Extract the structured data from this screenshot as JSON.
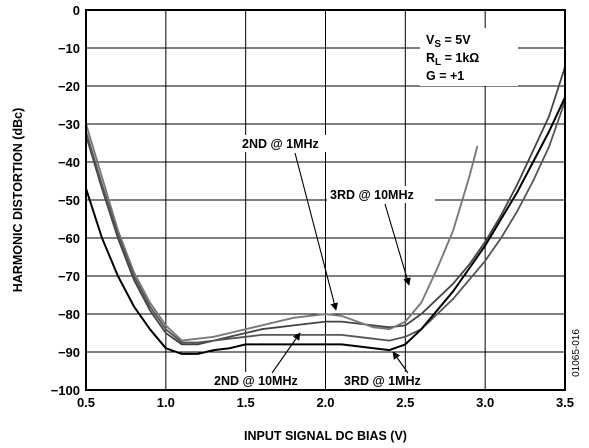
{
  "chart_data": {
    "type": "line",
    "title": "",
    "xlabel": "INPUT SIGNAL DC BIAS (V)",
    "ylabel": "HARMONIC DISTORTION (dBc)",
    "xlim": [
      0.5,
      3.5
    ],
    "ylim": [
      -100,
      0
    ],
    "x_ticks": [
      "0.5",
      "1.0",
      "1.5",
      "2.0",
      "2.5",
      "3.0",
      "3.5"
    ],
    "y_ticks": [
      "0",
      "−10",
      "−20",
      "−30",
      "−40",
      "−50",
      "−60",
      "−70",
      "−80",
      "−90",
      "−100"
    ],
    "grid": true,
    "conditions": {
      "vs_main": "V",
      "vs_sub": "S",
      "vs_rest": " = 5V",
      "rl_main": "R",
      "rl_sub": "L",
      "rl_rest": " = 1kΩ",
      "gain": "G = +1"
    },
    "figure_id": "01065-016",
    "series": [
      {
        "name": "2ND @ 1MHz",
        "color": "#444444",
        "x": [
          0.5,
          0.6,
          0.7,
          0.8,
          0.9,
          1.0,
          1.1,
          1.2,
          1.3,
          1.4,
          1.5,
          1.6,
          1.7,
          1.8,
          1.9,
          2.0,
          2.1,
          2.2,
          2.3,
          2.4,
          2.5,
          2.6,
          2.7,
          2.8,
          2.9,
          3.0,
          3.1,
          3.2,
          3.3,
          3.4,
          3.5
        ],
        "y": [
          -33,
          -47,
          -60,
          -71,
          -79,
          -85,
          -88,
          -88,
          -87,
          -86,
          -85,
          -84,
          -83.5,
          -83,
          -82.5,
          -82,
          -82,
          -82.5,
          -83,
          -83.5,
          -83,
          -80,
          -76,
          -72,
          -67,
          -61,
          -54,
          -46,
          -37,
          -28,
          -15
        ]
      },
      {
        "name": "3RD @ 10MHz",
        "color": "#7a7a7a",
        "x": [
          0.5,
          0.6,
          0.7,
          0.8,
          0.9,
          1.0,
          1.1,
          1.2,
          1.3,
          1.4,
          1.5,
          1.6,
          1.7,
          1.8,
          1.9,
          2.0,
          2.1,
          2.2,
          2.3,
          2.4,
          2.5,
          2.6,
          2.7,
          2.8,
          2.9,
          2.95
        ],
        "y": [
          -30,
          -44,
          -58,
          -69,
          -77,
          -83,
          -87,
          -86.5,
          -86,
          -85,
          -84,
          -83,
          -82,
          -81,
          -80.5,
          -80,
          -80.5,
          -82,
          -83.5,
          -84,
          -82,
          -77,
          -68,
          -58,
          -44,
          -36
        ]
      },
      {
        "name": "3RD @ 1MHz",
        "color": "#555555",
        "x": [
          0.5,
          0.6,
          0.7,
          0.8,
          0.9,
          1.0,
          1.1,
          1.2,
          1.3,
          1.4,
          1.5,
          1.6,
          1.7,
          1.8,
          1.9,
          2.0,
          2.1,
          2.2,
          2.3,
          2.4,
          2.5,
          2.6,
          2.7,
          2.8,
          2.9,
          3.0,
          3.1,
          3.2,
          3.3,
          3.4,
          3.5
        ],
        "y": [
          -32,
          -46,
          -59,
          -70,
          -78,
          -84,
          -87.5,
          -87.5,
          -87,
          -86.5,
          -86,
          -85.5,
          -85.5,
          -85.5,
          -85.5,
          -85.5,
          -85.5,
          -86,
          -86.5,
          -87,
          -86,
          -84,
          -80,
          -76,
          -71,
          -66,
          -60,
          -53,
          -45,
          -36,
          -24
        ]
      },
      {
        "name": "2ND @ 10MHz",
        "color": "#000000",
        "x": [
          0.5,
          0.6,
          0.7,
          0.8,
          0.9,
          1.0,
          1.1,
          1.2,
          1.3,
          1.4,
          1.5,
          1.6,
          1.7,
          1.8,
          1.9,
          2.0,
          2.1,
          2.2,
          2.3,
          2.4,
          2.5,
          2.6,
          2.7,
          2.8,
          2.9,
          3.0,
          3.1,
          3.2,
          3.3,
          3.4,
          3.5
        ],
        "y": [
          -47,
          -60,
          -70,
          -78,
          -84,
          -89,
          -90.5,
          -90.5,
          -89.5,
          -89,
          -88,
          -88,
          -88,
          -88,
          -88,
          -88,
          -88,
          -88.5,
          -89,
          -89.5,
          -88,
          -84,
          -79,
          -74,
          -68,
          -62,
          -55,
          -48,
          -40,
          -32,
          -23
        ]
      }
    ],
    "annotations": [
      {
        "text": "2ND @ 1MHz"
      },
      {
        "text": "3RD @ 10MHz"
      },
      {
        "text": "2ND @ 10MHz"
      },
      {
        "text": "3RD @ 1MHz"
      }
    ]
  }
}
